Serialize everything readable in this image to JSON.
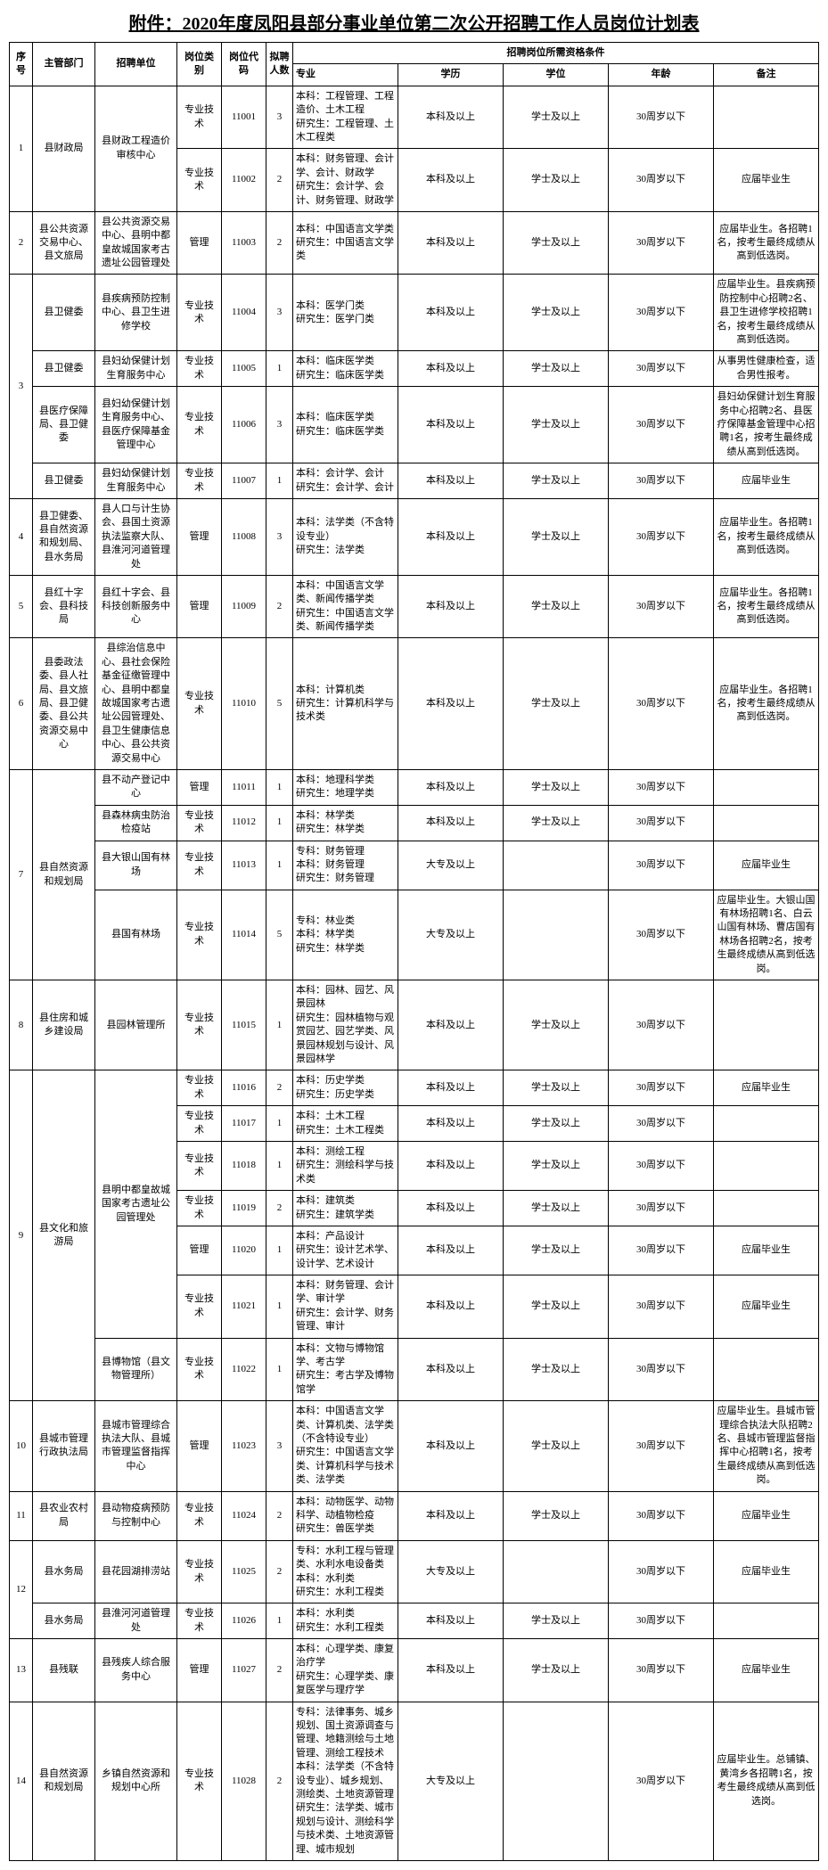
{
  "title": "附件：2020年度凤阳县部分事业单位第二次公开招聘工作人员岗位计划表",
  "headers": {
    "seq": "序号",
    "dept": "主管部门",
    "unit": "招聘单位",
    "category": "岗位类别",
    "code": "岗位代码",
    "num": "拟聘人数",
    "req_group": "招聘岗位所需资格条件",
    "major": "专业",
    "edu": "学历",
    "degree": "学位",
    "age": "年龄",
    "note": "备注"
  },
  "rows": [
    {
      "seq": "1",
      "seq_rs": 2,
      "dept": "县财政局",
      "dept_rs": 2,
      "unit": "县财政工程造价审核中心",
      "unit_rs": 2,
      "cat": "专业技术",
      "code": "11001",
      "num": "3",
      "major": "本科：工程管理、工程造价、土木工程\n研究生：工程管理、土木工程类",
      "edu": "本科及以上",
      "deg": "学士及以上",
      "age": "30周岁以下",
      "note": ""
    },
    {
      "cat": "专业技术",
      "code": "11002",
      "num": "2",
      "major": "本科：财务管理、会计学、会计、财政学\n研究生：会计学、会计、财务管理、财政学",
      "edu": "本科及以上",
      "deg": "学士及以上",
      "age": "30周岁以下",
      "note": "应届毕业生"
    },
    {
      "seq": "2",
      "seq_rs": 1,
      "dept": "县公共资源交易中心、县文旅局",
      "dept_rs": 1,
      "unit": "县公共资源交易中心、县明中都皇故城国家考古遗址公园管理处",
      "unit_rs": 1,
      "cat": "管理",
      "code": "11003",
      "num": "2",
      "major": "本科：中国语言文学类\n研究生：中国语言文学类",
      "edu": "本科及以上",
      "deg": "学士及以上",
      "age": "30周岁以下",
      "note": "应届毕业生。各招聘1名，按考生最终成绩从高到低选岗。"
    },
    {
      "seq": "3",
      "seq_rs": 4,
      "dept": "县卫健委",
      "dept_rs": 1,
      "unit": "县疾病预防控制中心、县卫生进修学校",
      "unit_rs": 1,
      "cat": "专业技术",
      "code": "11004",
      "num": "3",
      "major": "本科：医学门类\n研究生：医学门类",
      "edu": "本科及以上",
      "deg": "学士及以上",
      "age": "30周岁以下",
      "note": "应届毕业生。县疾病预防控制中心招聘2名、县卫生进修学校招聘1名，按考生最终成绩从高到低选岗。"
    },
    {
      "dept": "县卫健委",
      "dept_rs": 1,
      "unit": "县妇幼保健计划生育服务中心",
      "unit_rs": 1,
      "cat": "专业技术",
      "code": "11005",
      "num": "1",
      "major": "本科：临床医学类\n研究生：临床医学类",
      "edu": "本科及以上",
      "deg": "学士及以上",
      "age": "30周岁以下",
      "note": "从事男性健康检查，适合男性报考。"
    },
    {
      "dept": "县医疗保障局、县卫健委",
      "dept_rs": 1,
      "unit": "县妇幼保健计划生育服务中心、县医疗保障基金管理中心",
      "unit_rs": 1,
      "cat": "专业技术",
      "code": "11006",
      "num": "3",
      "major": "本科：临床医学类\n研究生：临床医学类",
      "edu": "本科及以上",
      "deg": "学士及以上",
      "age": "30周岁以下",
      "note": "县妇幼保健计划生育服务中心招聘2名、县医疗保障基金管理中心招聘1名，按考生最终成绩从高到低选岗。"
    },
    {
      "dept": "县卫健委",
      "dept_rs": 1,
      "unit": "县妇幼保健计划生育服务中心",
      "unit_rs": 1,
      "cat": "专业技术",
      "code": "11007",
      "num": "1",
      "major": "本科：会计学、会计\n研究生：会计学、会计",
      "edu": "本科及以上",
      "deg": "学士及以上",
      "age": "30周岁以下",
      "note": "应届毕业生"
    },
    {
      "seq": "4",
      "seq_rs": 1,
      "dept": "县卫健委、县自然资源和规划局、县水务局",
      "dept_rs": 1,
      "unit": "县人口与计生协会、县国土资源执法监察大队、县淮河河道管理处",
      "unit_rs": 1,
      "cat": "管理",
      "code": "11008",
      "num": "3",
      "major": "本科：法学类（不含特设专业）\n研究生：法学类",
      "edu": "本科及以上",
      "deg": "学士及以上",
      "age": "30周岁以下",
      "note": "应届毕业生。各招聘1名，按考生最终成绩从高到低选岗。"
    },
    {
      "seq": "5",
      "seq_rs": 1,
      "dept": "县红十字会、县科技局",
      "dept_rs": 1,
      "unit": "县红十字会、县科技创新服务中心",
      "unit_rs": 1,
      "cat": "管理",
      "code": "11009",
      "num": "2",
      "major": "本科：中国语言文学类、新闻传播学类\n研究生：中国语言文学类、新闻传播学类",
      "edu": "本科及以上",
      "deg": "学士及以上",
      "age": "30周岁以下",
      "note": "应届毕业生。各招聘1名，按考生最终成绩从高到低选岗。"
    },
    {
      "seq": "6",
      "seq_rs": 1,
      "dept": "县委政法委、县人社局、县文旅局、县卫健委、县公共资源交易中心",
      "dept_rs": 1,
      "unit": "县综治信息中心、县社会保险基金征缴管理中心、县明中都皇故城国家考古遗址公园管理处、县卫生健康信息中心、县公共资源交易中心",
      "unit_rs": 1,
      "cat": "专业技术",
      "code": "11010",
      "num": "5",
      "major": "本科：计算机类\n研究生：计算机科学与技术类",
      "edu": "本科及以上",
      "deg": "学士及以上",
      "age": "30周岁以下",
      "note": "应届毕业生。各招聘1名，按考生最终成绩从高到低选岗。"
    },
    {
      "seq": "7",
      "seq_rs": 4,
      "dept": "县自然资源和规划局",
      "dept_rs": 4,
      "unit": "县不动产登记中心",
      "unit_rs": 1,
      "cat": "管理",
      "code": "11011",
      "num": "1",
      "major": "本科：地理科学类\n研究生：地理学类",
      "edu": "本科及以上",
      "deg": "学士及以上",
      "age": "30周岁以下",
      "note": ""
    },
    {
      "unit": "县森林病虫防治检疫站",
      "unit_rs": 1,
      "cat": "专业技术",
      "code": "11012",
      "num": "1",
      "major": "本科：林学类\n研究生：林学类",
      "edu": "本科及以上",
      "deg": "学士及以上",
      "age": "30周岁以下",
      "note": ""
    },
    {
      "unit": "县大银山国有林场",
      "unit_rs": 1,
      "cat": "专业技术",
      "code": "11013",
      "num": "1",
      "major": "专科：财务管理\n本科：财务管理\n研究生：财务管理",
      "edu": "大专及以上",
      "deg": "",
      "age": "30周岁以下",
      "note": "应届毕业生"
    },
    {
      "unit": "县国有林场",
      "unit_rs": 1,
      "cat": "专业技术",
      "code": "11014",
      "num": "5",
      "major": "专科：林业类\n本科：林学类\n研究生：林学类",
      "edu": "大专及以上",
      "deg": "",
      "age": "30周岁以下",
      "note": "应届毕业生。大银山国有林场招聘1名、白云山国有林场、曹店国有林场各招聘2名，按考生最终成绩从高到低选岗。"
    },
    {
      "seq": "8",
      "seq_rs": 1,
      "dept": "县住房和城乡建设局",
      "dept_rs": 1,
      "unit": "县园林管理所",
      "unit_rs": 1,
      "cat": "专业技术",
      "code": "11015",
      "num": "1",
      "major": "本科：园林、园艺、风景园林\n研究生：园林植物与观赏园艺、园艺学类、风景园林规划与设计、风景园林学",
      "edu": "本科及以上",
      "deg": "学士及以上",
      "age": "30周岁以下",
      "note": ""
    },
    {
      "seq": "9",
      "seq_rs": 7,
      "dept": "县文化和旅游局",
      "dept_rs": 7,
      "unit": "县明中都皇故城国家考古遗址公园管理处",
      "unit_rs": 6,
      "cat": "专业技术",
      "code": "11016",
      "num": "2",
      "major": "本科：历史学类\n研究生：历史学类",
      "edu": "本科及以上",
      "deg": "学士及以上",
      "age": "30周岁以下",
      "note": "应届毕业生"
    },
    {
      "cat": "专业技术",
      "code": "11017",
      "num": "1",
      "major": "本科：土木工程\n研究生：土木工程类",
      "edu": "本科及以上",
      "deg": "学士及以上",
      "age": "30周岁以下",
      "note": ""
    },
    {
      "cat": "专业技术",
      "code": "11018",
      "num": "1",
      "major": "本科：测绘工程\n研究生：测绘科学与技术类",
      "edu": "本科及以上",
      "deg": "学士及以上",
      "age": "30周岁以下",
      "note": ""
    },
    {
      "cat": "专业技术",
      "code": "11019",
      "num": "2",
      "major": "本科：建筑类\n研究生：建筑学类",
      "edu": "本科及以上",
      "deg": "学士及以上",
      "age": "30周岁以下",
      "note": ""
    },
    {
      "cat": "管理",
      "code": "11020",
      "num": "1",
      "major": "本科：产品设计\n研究生：设计艺术学、设计学、艺术设计",
      "edu": "本科及以上",
      "deg": "学士及以上",
      "age": "30周岁以下",
      "note": "应届毕业生"
    },
    {
      "cat": "专业技术",
      "code": "11021",
      "num": "1",
      "major": "本科：财务管理、会计学、审计学\n研究生：会计学、财务管理、审计",
      "edu": "本科及以上",
      "deg": "学士及以上",
      "age": "30周岁以下",
      "note": "应届毕业生"
    },
    {
      "unit": "县博物馆（县文物管理所）",
      "unit_rs": 1,
      "cat": "专业技术",
      "code": "11022",
      "num": "1",
      "major": "本科：文物与博物馆学、考古学\n研究生：考古学及博物馆学",
      "edu": "本科及以上",
      "deg": "学士及以上",
      "age": "30周岁以下",
      "note": ""
    },
    {
      "seq": "10",
      "seq_rs": 1,
      "dept": "县城市管理行政执法局",
      "dept_rs": 1,
      "unit": "县城市管理综合执法大队、县城市管理监督指挥中心",
      "unit_rs": 1,
      "cat": "管理",
      "code": "11023",
      "num": "3",
      "major": "本科：中国语言文学类、计算机类、法学类（不含特设专业）\n研究生：中国语言文学类、计算机科学与技术类、法学类",
      "edu": "本科及以上",
      "deg": "学士及以上",
      "age": "30周岁以下",
      "note": "应届毕业生。县城市管理综合执法大队招聘2名、县城市管理监督指挥中心招聘1名，按考生最终成绩从高到低选岗。"
    },
    {
      "seq": "11",
      "seq_rs": 1,
      "dept": "县农业农村局",
      "dept_rs": 1,
      "unit": "县动物疫病预防与控制中心",
      "unit_rs": 1,
      "cat": "专业技术",
      "code": "11024",
      "num": "2",
      "major": "本科：动物医学、动物科学、动植物检疫\n研究生：兽医学类",
      "edu": "本科及以上",
      "deg": "学士及以上",
      "age": "30周岁以下",
      "note": "应届毕业生"
    },
    {
      "seq": "12",
      "seq_rs": 2,
      "dept": "县水务局",
      "dept_rs": 1,
      "unit": "县花园湖排涝站",
      "unit_rs": 1,
      "cat": "专业技术",
      "code": "11025",
      "num": "2",
      "major": "专科：水利工程与管理类、水利水电设备类\n本科：水利类\n研究生：水利工程类",
      "edu": "大专及以上",
      "deg": "",
      "age": "30周岁以下",
      "note": "应届毕业生"
    },
    {
      "dept": "县水务局",
      "dept_rs": 1,
      "unit": "县淮河河道管理处",
      "unit_rs": 1,
      "cat": "专业技术",
      "code": "11026",
      "num": "1",
      "major": "本科：水利类\n研究生：水利工程类",
      "edu": "本科及以上",
      "deg": "学士及以上",
      "age": "30周岁以下",
      "note": ""
    },
    {
      "seq": "13",
      "seq_rs": 1,
      "dept": "县残联",
      "dept_rs": 1,
      "unit": "县残疾人综合服务中心",
      "unit_rs": 1,
      "cat": "管理",
      "code": "11027",
      "num": "2",
      "major": "本科：心理学类、康复治疗学\n研究生：心理学类、康复医学与理疗学",
      "edu": "本科及以上",
      "deg": "学士及以上",
      "age": "30周岁以下",
      "note": "应届毕业生"
    },
    {
      "seq": "14",
      "seq_rs": 1,
      "dept": "县自然资源和规划局",
      "dept_rs": 1,
      "unit": "乡镇自然资源和规划中心所",
      "unit_rs": 1,
      "cat": "专业技术",
      "code": "11028",
      "num": "2",
      "major": "专科：法律事务、城乡规划、国土资源调查与管理、地籍测绘与土地管理、测绘工程技术\n本科：法学类（不含特设专业）、城乡规划、测绘类、土地资源管理\n研究生：法学类、城市规划与设计、测绘科学与技术类、土地资源管理、城市规划",
      "edu": "大专及以上",
      "deg": "",
      "age": "30周岁以下",
      "note": "应届毕业生。总铺镇、黄湾乡各招聘1名，按考生最终成绩从高到低选岗。"
    }
  ]
}
